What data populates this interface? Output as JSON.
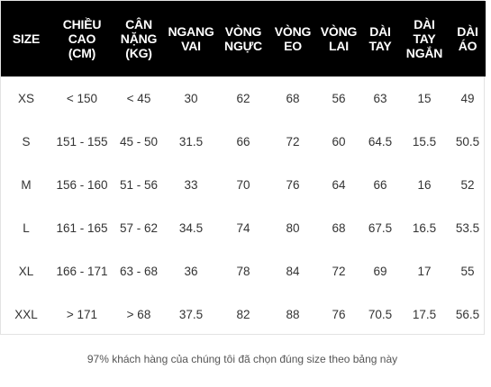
{
  "table": {
    "headers": [
      [
        "SIZE"
      ],
      [
        "CHIỀU",
        "CAO",
        "(CM)"
      ],
      [
        "CÂN",
        "NẶNG",
        "(KG)"
      ],
      [
        "NGANG",
        "VAI"
      ],
      [
        "VÒNG",
        "NGỰC"
      ],
      [
        "VÒNG",
        "EO"
      ],
      [
        "VÒNG",
        "LAI"
      ],
      [
        "DÀI",
        "TAY"
      ],
      [
        "DÀI TAY",
        "NGẮN"
      ],
      [
        "DÀI",
        "ÁO"
      ]
    ],
    "rows": [
      [
        "XS",
        "< 150",
        "< 45",
        "30",
        "62",
        "68",
        "56",
        "63",
        "15",
        "49"
      ],
      [
        "S",
        "151 - 155",
        "45 - 50",
        "31.5",
        "66",
        "72",
        "60",
        "64.5",
        "15.5",
        "50.5"
      ],
      [
        "M",
        "156 - 160",
        "51 - 56",
        "33",
        "70",
        "76",
        "64",
        "66",
        "16",
        "52"
      ],
      [
        "L",
        "161 - 165",
        "57 - 62",
        "34.5",
        "74",
        "80",
        "68",
        "67.5",
        "16.5",
        "53.5"
      ],
      [
        "XL",
        "166 - 171",
        "63 - 68",
        "36",
        "78",
        "84",
        "72",
        "69",
        "17",
        "55"
      ],
      [
        "XXL",
        "> 171",
        "> 68",
        "37.5",
        "82",
        "88",
        "76",
        "70.5",
        "17.5",
        "56.5"
      ]
    ]
  },
  "footnote": "97% khách hàng của chúng tôi đã chọn đúng size theo bảng này",
  "colors": {
    "header_bg": "#000000",
    "header_text": "#ffffff",
    "body_text": "#333333",
    "footnote_text": "#555555"
  }
}
